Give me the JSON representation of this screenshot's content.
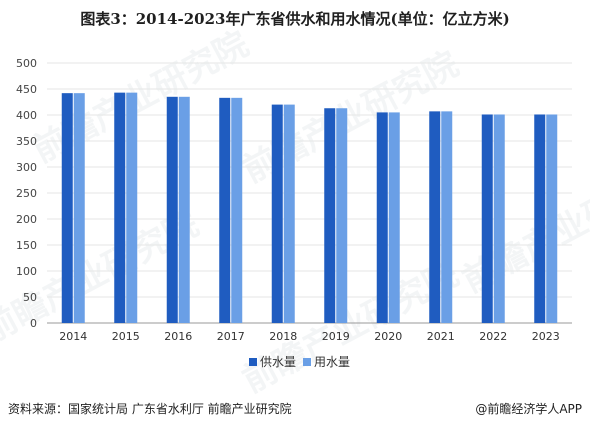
{
  "title": "图表3：2014-2023年广东省供水和用水情况(单位：亿立方米)",
  "source": "资料来源：国家统计局 广东省水利厅 前瞻产业研究院",
  "credit": "@前瞻经济学人APP",
  "watermark": "前瞻产业研究院",
  "colors": {
    "supply": "#1f5cc0",
    "use": "#6a9fe6",
    "grid": "#e6e6e6",
    "axis": "#999999"
  },
  "chart_data": {
    "type": "bar",
    "categories": [
      "2014",
      "2015",
      "2016",
      "2017",
      "2018",
      "2019",
      "2020",
      "2021",
      "2022",
      "2023"
    ],
    "series": [
      {
        "name": "供水量",
        "values": [
          442,
          443,
          435,
          433,
          420,
          413,
          405,
          407,
          401,
          401
        ]
      },
      {
        "name": "用水量",
        "values": [
          442,
          443,
          435,
          433,
          420,
          413,
          405,
          407,
          401,
          401
        ]
      }
    ],
    "ylim": [
      0,
      500
    ],
    "yticks": [
      0,
      50,
      100,
      150,
      200,
      250,
      300,
      350,
      400,
      450,
      500
    ],
    "grid": true,
    "legend": "bottom"
  }
}
